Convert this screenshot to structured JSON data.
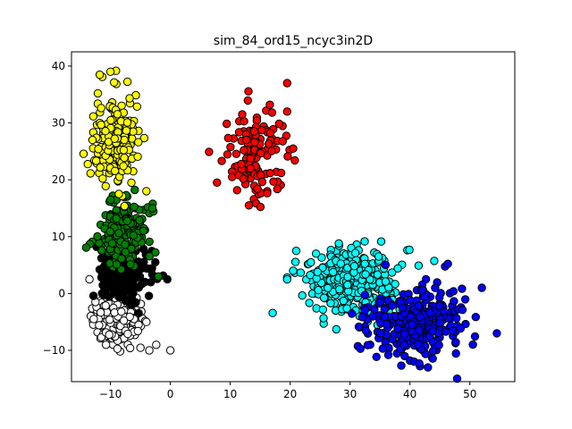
{
  "chart_data": {
    "type": "scatter",
    "title": "sim_84_ord15_ncyc3in2D",
    "xlabel": "",
    "ylabel": "",
    "xlim": [
      -16.5,
      57.5
    ],
    "ylim": [
      -15.5,
      42.5
    ],
    "xticks": [
      -10,
      0,
      10,
      20,
      30,
      40,
      50
    ],
    "yticks": [
      -10,
      0,
      10,
      20,
      30,
      40
    ],
    "grid": false,
    "legend": null,
    "series": [
      {
        "color": "#ffffff",
        "count": 200,
        "center": [
          -9,
          -4
        ],
        "spread": [
          2.0,
          2.6
        ],
        "extra": [
          [
            -13.5,
            2.5
          ],
          [
            -12.5,
            -1.5
          ],
          [
            -3.5,
            -10
          ],
          [
            0,
            -10
          ],
          [
            -4,
            -5
          ]
        ]
      },
      {
        "color": "#000000",
        "count": 200,
        "center": [
          -8,
          3
        ],
        "spread": [
          2.0,
          2.2
        ],
        "extra": [
          [
            -2.5,
            5.5
          ],
          [
            -0.5,
            2.5
          ]
        ]
      },
      {
        "color": "#008000",
        "count": 200,
        "center": [
          -8,
          11
        ],
        "spread": [
          2.0,
          2.8
        ],
        "extra": [
          [
            -3,
            15
          ],
          [
            -2,
            3
          ]
        ]
      },
      {
        "color": "#ffff00",
        "count": 200,
        "center": [
          -9,
          27
        ],
        "spread": [
          1.9,
          4.2
        ],
        "extra": [
          [
            -10,
            39
          ],
          [
            -13,
            27
          ],
          [
            -4,
            18
          ]
        ]
      },
      {
        "color": "#ff0000",
        "count": 130,
        "center": [
          14.5,
          24
        ],
        "spread": [
          2.7,
          4.2
        ],
        "extra": [
          [
            19.5,
            37
          ],
          [
            19.5,
            32
          ],
          [
            20.5,
            25.5
          ],
          [
            12,
            31.5
          ]
        ]
      },
      {
        "color": "#00ffff",
        "count": 320,
        "center": [
          30,
          2
        ],
        "spread": [
          4.0,
          3.0
        ],
        "extra": [
          [
            19.5,
            2.5
          ],
          [
            21,
            7.5
          ],
          [
            20.5,
            4
          ],
          [
            35.5,
            -5
          ]
        ]
      },
      {
        "color": "#0000ff",
        "count": 300,
        "center": [
          41,
          -5
        ],
        "spread": [
          4.0,
          3.0
        ],
        "extra": [
          [
            52,
            1
          ],
          [
            54.5,
            -7
          ],
          [
            50.5,
            -9
          ],
          [
            43,
            -13
          ]
        ]
      }
    ]
  }
}
